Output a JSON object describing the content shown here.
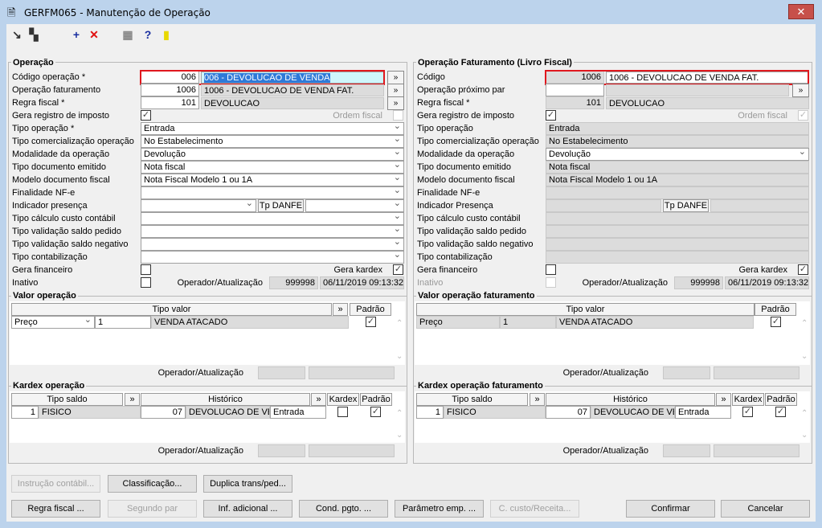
{
  "window": {
    "title": "GERFM065 - Manutenção de Operação",
    "close": "✕"
  },
  "toolbar": [
    {
      "name": "open-icon",
      "glyph": "↘"
    },
    {
      "name": "copy-icon",
      "glyph": "▚"
    },
    {
      "name": "add-icon",
      "glyph": "+",
      "color": "#1a2fa0"
    },
    {
      "name": "delete-icon",
      "glyph": "✕",
      "color": "#e01010"
    },
    {
      "name": "calendar-icon",
      "glyph": "▦",
      "color": "#888"
    },
    {
      "name": "help-icon",
      "glyph": "?",
      "color": "#1a2fa0"
    },
    {
      "name": "exit-door-icon",
      "glyph": "▮",
      "color": "#e8d800"
    }
  ],
  "left": {
    "title": "Operação",
    "rows": [
      {
        "kind": "lookup",
        "label": "Código operação *",
        "code": "006",
        "desc": "006 - DEVOLUCAO DE VENDA",
        "desc_state": "selected",
        "button": "»",
        "highlight": true
      },
      {
        "kind": "lookup",
        "label": "Operação faturamento",
        "code": "1006",
        "desc": "1006 - DEVOLUCAO DE VENDA FAT.",
        "desc_state": "readonly",
        "button": "»"
      },
      {
        "kind": "lookup",
        "label": "Regra fiscal *",
        "code": "101",
        "desc": "DEVOLUCAO",
        "desc_state": "readonly",
        "button": "»"
      },
      {
        "kind": "checkpair",
        "label": "Gera registro de imposto",
        "checked": true,
        "label2": "Ordem fiscal",
        "checked2": false,
        "disabled2": true
      },
      {
        "kind": "select",
        "label": "Tipo operação *",
        "value": "Entrada"
      },
      {
        "kind": "select",
        "label": "Tipo comercialização operação",
        "value": "No Estabelecimento"
      },
      {
        "kind": "select",
        "label": "Modalidade da operação",
        "value": "Devolução"
      },
      {
        "kind": "select",
        "label": "Tipo documento emitido",
        "value": "Nota fiscal"
      },
      {
        "kind": "select",
        "label": "Modelo documento fiscal",
        "value": "Nota Fiscal Modelo 1 ou 1A"
      },
      {
        "kind": "select",
        "label": "Finalidade NF-e",
        "value": ""
      },
      {
        "kind": "presence",
        "label": "Indicador presença",
        "value": "",
        "danfe_label": "Tp DANFE",
        "danfe_value": ""
      },
      {
        "kind": "select",
        "label": "Tipo cálculo custo contábil",
        "value": ""
      },
      {
        "kind": "select",
        "label": "Tipo validação saldo pedido",
        "value": ""
      },
      {
        "kind": "select",
        "label": "Tipo validação saldo negativo",
        "value": ""
      },
      {
        "kind": "select",
        "label": "Tipo contabilização",
        "value": ""
      },
      {
        "kind": "checkpair",
        "label": "Gera financeiro",
        "checked": false,
        "label2": "Gera kardex",
        "checked2": true,
        "disabled2": false
      },
      {
        "kind": "inativo",
        "label": "Inativo",
        "checked": false,
        "operador_label": "Operador/Atualização",
        "operador": "999998",
        "timestamp": "06/11/2019 09:13:32"
      }
    ],
    "valor": {
      "title": "Valor operação",
      "header": "Tipo valor",
      "more": "»",
      "padrao": "Padrão",
      "row": {
        "tipo": "Preço",
        "code": "1",
        "desc": "VENDA ATACADO",
        "padrao": true
      },
      "operador_label": "Operador/Atualização"
    },
    "kardex": {
      "title": "Kardex operação",
      "h_saldo": "Tipo saldo",
      "h_more1": "»",
      "h_historico": "Histórico",
      "h_more2": "»",
      "h_kardex": "Kardex",
      "h_padrao": "Padrão",
      "row": {
        "saldo_code": "1",
        "saldo": "FISICO",
        "hist_code": "07",
        "historico": "DEVOLUCAO DE VENDA",
        "tipo": "Entrada",
        "kardex": false,
        "padrao": true
      },
      "operador_label": "Operador/Atualização"
    }
  },
  "right": {
    "title": "Operação Faturamento (Livro Fiscal)",
    "rows": [
      {
        "kind": "lookup",
        "label": "Código",
        "code": "1006",
        "code_state": "readonly",
        "desc": "1006 - DEVOLUCAO DE VENDA FAT.",
        "desc_state": "normal",
        "highlight": true
      },
      {
        "kind": "lookup",
        "label": "Operação próximo par",
        "code": "",
        "desc": "",
        "desc_state": "readonly",
        "button": "»"
      },
      {
        "kind": "lookup",
        "label": "Regra fiscal *",
        "code": "101",
        "code_state": "readonly",
        "desc": "DEVOLUCAO",
        "desc_state": "readonly"
      },
      {
        "kind": "checkpair",
        "label": "Gera registro de imposto",
        "checked": true,
        "label2": "Ordem fiscal",
        "checked2": true,
        "disabled2": true
      },
      {
        "kind": "select",
        "label": "Tipo operação",
        "value": "Entrada",
        "readonly": true
      },
      {
        "kind": "select",
        "label": "Tipo comercialização operação",
        "value": "No Estabelecimento",
        "readonly": true
      },
      {
        "kind": "select",
        "label": "Modalidade da operação",
        "value": "Devolução"
      },
      {
        "kind": "select",
        "label": "Tipo documento emitido",
        "value": "Nota fiscal",
        "readonly": true
      },
      {
        "kind": "select",
        "label": "Modelo documento fiscal",
        "value": "Nota Fiscal Modelo 1 ou 1A",
        "readonly": true
      },
      {
        "kind": "select",
        "label": "Finalidade NF-e",
        "value": "",
        "readonly": true
      },
      {
        "kind": "presence",
        "label": "Indicador Presença",
        "value": "",
        "danfe_label": "Tp DANFE",
        "danfe_value": "",
        "readonly": true
      },
      {
        "kind": "select",
        "label": "Tipo cálculo custo contábil",
        "value": "",
        "readonly": true
      },
      {
        "kind": "select",
        "label": "Tipo validação saldo pedido",
        "value": "",
        "readonly": true
      },
      {
        "kind": "select",
        "label": "Tipo validação saldo negativo",
        "value": "",
        "readonly": true
      },
      {
        "kind": "select",
        "label": "Tipo contabilização",
        "value": "",
        "readonly": true
      },
      {
        "kind": "checkpair",
        "label": "Gera financeiro",
        "checked": false,
        "label2": "Gera kardex",
        "checked2": true,
        "disabled2": false
      },
      {
        "kind": "inativo",
        "label": "Inativo",
        "checked": false,
        "disabled": true,
        "operador_label": "Operador/Atualização",
        "operador": "999998",
        "timestamp": "06/11/2019 09:13:32"
      }
    ],
    "valor": {
      "title": "Valor operação faturamento",
      "header": "Tipo valor",
      "padrao": "Padrão",
      "row": {
        "tipo": "Preço",
        "code": "1",
        "desc": "VENDA ATACADO",
        "padrao": true
      },
      "operador_label": "Operador/Atualização"
    },
    "kardex": {
      "title": "Kardex operação faturamento",
      "h_saldo": "Tipo saldo",
      "h_more1": "»",
      "h_historico": "Histórico",
      "h_more2": "»",
      "h_kardex": "Kardex",
      "h_padrao": "Padrão",
      "row": {
        "saldo_code": "1",
        "saldo": "FISICO",
        "hist_code": "07",
        "historico": "DEVOLUCAO DE VENDA",
        "tipo": "Entrada",
        "kardex": true,
        "padrao": true
      },
      "operador_label": "Operador/Atualização"
    }
  },
  "buttons": [
    {
      "label": "Instrução contábil...",
      "disabled": true
    },
    {
      "label": "Classificação..."
    },
    {
      "label": "Duplica trans/ped..."
    },
    {
      "label": "Regra fiscal ..."
    },
    {
      "label": "Segundo par",
      "disabled": true
    },
    {
      "label": "Inf. adicional ..."
    },
    {
      "label": "Cond. pgto. ..."
    },
    {
      "label": "Parâmetro emp. ..."
    },
    {
      "label": "C. custo/Receita...",
      "disabled": true
    },
    {
      "label": "Confirmar"
    },
    {
      "label": "Cancelar"
    }
  ]
}
